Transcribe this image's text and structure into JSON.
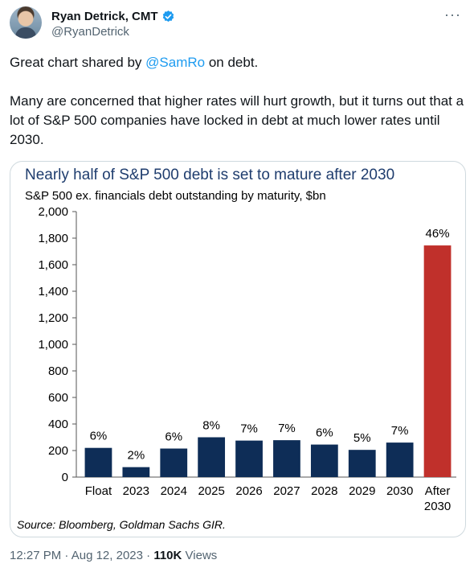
{
  "author": {
    "display_name": "Ryan Detrick, CMT",
    "handle": "@RyanDetrick"
  },
  "tweet": {
    "text_prefix": "Great chart shared by ",
    "mention": "@SamRo",
    "text_suffix": " on debt.",
    "paragraph2": "Many are concerned that higher rates will hurt growth, but it turns out that a lot of S&P 500 companies have locked in debt at much lower rates until 2030."
  },
  "meta": {
    "time": "12:27 PM",
    "date": "Aug 12, 2023",
    "separator": "·",
    "views_count": "110K",
    "views_label": "Views"
  },
  "colors": {
    "bar": "#0e2d57",
    "highlight": "#c0302b",
    "title": "#1f3d6e",
    "accent": "#1d9bf0"
  },
  "chart_data": {
    "type": "bar",
    "title": "Nearly half of S&P 500 debt is set to mature after 2030",
    "subtitle": "S&P 500 ex. financials debt outstanding by maturity, $bn",
    "source": "Source: Bloomberg, Goldman Sachs GIR.",
    "categories": [
      "Float",
      "2023",
      "2024",
      "2025",
      "2026",
      "2027",
      "2028",
      "2029",
      "2030",
      "After 2030"
    ],
    "values": [
      220,
      75,
      215,
      300,
      275,
      278,
      245,
      205,
      260,
      1745
    ],
    "data_labels": [
      "6%",
      "2%",
      "6%",
      "8%",
      "7%",
      "7%",
      "6%",
      "5%",
      "7%",
      "46%"
    ],
    "yticks": [
      "0",
      "200",
      "400",
      "600",
      "800",
      "1,000",
      "1,200",
      "1,400",
      "1,600",
      "1,800",
      "2,000"
    ],
    "ylim": [
      0,
      2000
    ],
    "highlight_index": 9
  }
}
